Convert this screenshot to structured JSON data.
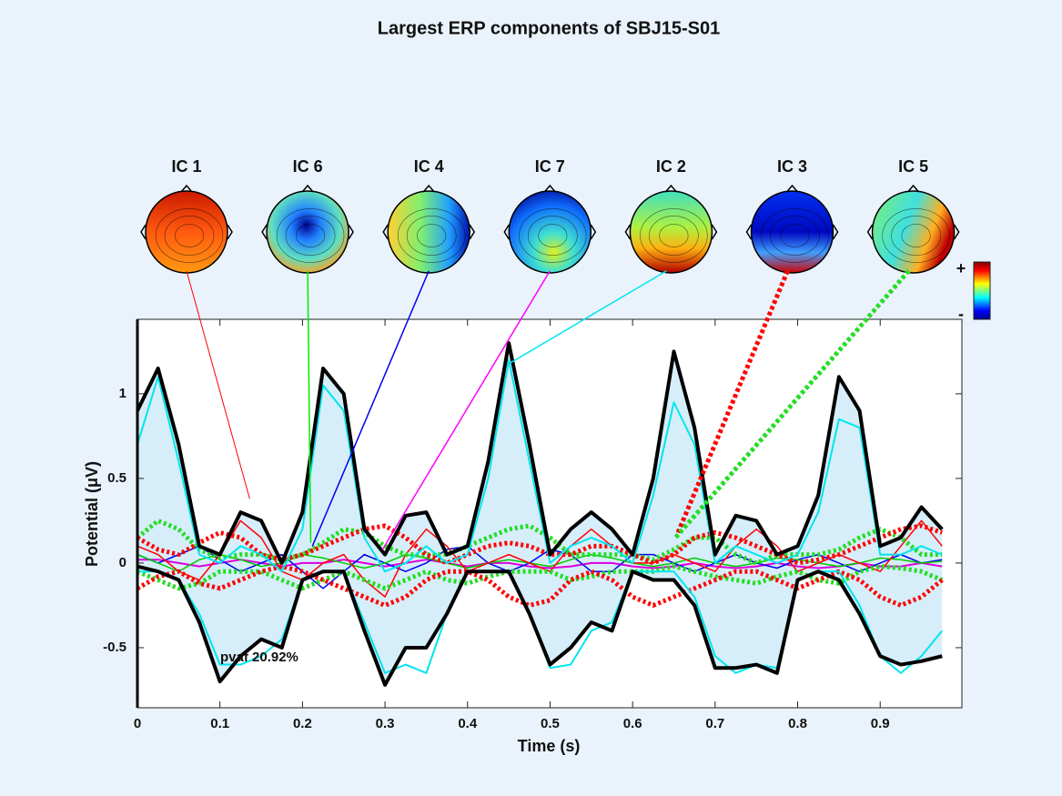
{
  "chart_data": {
    "type": "line",
    "title": "Largest ERP components of SBJ15-S01",
    "xlabel": "Time (s)",
    "ylabel": "Potential (μV)",
    "annotation": "pvaf 20.92%",
    "colorbar": {
      "plus": "+",
      "minus": "-"
    },
    "xlim": [
      0,
      0.999
    ],
    "ylim": [
      -0.855,
      1.44
    ],
    "xticks": [
      0,
      0.1,
      0.2,
      0.3,
      0.4,
      0.5,
      0.6,
      0.7,
      0.8,
      0.9
    ],
    "yticks": [
      -0.5,
      0,
      0.5,
      1
    ],
    "area_color": "#d6eef9",
    "x": [
      0,
      0.025,
      0.05,
      0.075,
      0.1,
      0.125,
      0.15,
      0.175,
      0.2,
      0.225,
      0.25,
      0.275,
      0.3,
      0.325,
      0.35,
      0.375,
      0.4,
      0.425,
      0.45,
      0.475,
      0.5,
      0.525,
      0.55,
      0.575,
      0.6,
      0.625,
      0.65,
      0.675,
      0.7,
      0.725,
      0.75,
      0.775,
      0.8,
      0.825,
      0.85,
      0.875,
      0.9,
      0.925,
      0.95,
      0.975
    ],
    "series": [
      {
        "color": "#000000",
        "linewidth": 4,
        "style": "solid",
        "values": [
          0.9,
          1.15,
          0.7,
          0.1,
          0.05,
          0.3,
          0.25,
          0.0,
          0.3,
          1.15,
          1.0,
          0.2,
          0.05,
          0.28,
          0.3,
          0.05,
          0.1,
          0.6,
          1.3,
          0.7,
          0.05,
          0.2,
          0.3,
          0.2,
          0.05,
          0.5,
          1.25,
          0.8,
          0.05,
          0.28,
          0.25,
          0.05,
          0.1,
          0.4,
          1.1,
          0.9,
          0.1,
          0.15,
          0.33,
          0.2
        ]
      },
      {
        "color": "#000000",
        "linewidth": 4,
        "style": "solid",
        "values": [
          -0.02,
          -0.05,
          -0.1,
          -0.35,
          -0.7,
          -0.55,
          -0.45,
          -0.5,
          -0.1,
          -0.05,
          -0.05,
          -0.4,
          -0.72,
          -0.5,
          -0.5,
          -0.3,
          -0.05,
          -0.05,
          -0.05,
          -0.3,
          -0.6,
          -0.5,
          -0.35,
          -0.4,
          -0.05,
          -0.1,
          -0.1,
          -0.25,
          -0.62,
          -0.62,
          -0.6,
          -0.65,
          -0.1,
          -0.05,
          -0.1,
          -0.3,
          -0.55,
          -0.6,
          -0.58,
          -0.55
        ]
      },
      {
        "color": "#00e5ee",
        "linewidth": 2,
        "style": "solid",
        "values": [
          0.7,
          1.1,
          0.6,
          0.05,
          0.0,
          0.1,
          0.05,
          -0.05,
          0.2,
          1.05,
          0.9,
          0.15,
          -0.05,
          0.0,
          0.1,
          0.0,
          0.05,
          0.5,
          1.2,
          0.6,
          0.0,
          0.1,
          0.15,
          0.1,
          0.0,
          0.4,
          0.95,
          0.7,
          0.0,
          0.1,
          0.05,
          0.0,
          0.05,
          0.3,
          0.85,
          0.8,
          0.05,
          0.05,
          0.1,
          0.05
        ]
      },
      {
        "color": "#00e5ee",
        "linewidth": 2,
        "style": "solid",
        "values": [
          -0.05,
          -0.05,
          -0.1,
          -0.3,
          -0.6,
          -0.6,
          -0.55,
          -0.45,
          -0.1,
          -0.05,
          -0.05,
          -0.35,
          -0.65,
          -0.6,
          -0.65,
          -0.3,
          -0.05,
          -0.05,
          -0.05,
          -0.3,
          -0.62,
          -0.6,
          -0.4,
          -0.35,
          -0.05,
          -0.05,
          -0.05,
          -0.2,
          -0.55,
          -0.65,
          -0.6,
          -0.62,
          -0.1,
          -0.05,
          -0.05,
          -0.25,
          -0.55,
          -0.65,
          -0.55,
          -0.4
        ]
      },
      {
        "color": "#ff0000",
        "linewidth": 5,
        "style": "dotted",
        "values": [
          0.15,
          0.08,
          0.05,
          0.12,
          0.18,
          0.15,
          0.05,
          0.02,
          0.05,
          0.1,
          0.15,
          0.2,
          0.22,
          0.15,
          0.05,
          0.0,
          0.05,
          0.1,
          0.12,
          0.1,
          0.05,
          0.05,
          0.1,
          0.1,
          0.05,
          0.0,
          0.05,
          0.15,
          0.18,
          0.15,
          0.1,
          0.05,
          0.0,
          0.02,
          0.05,
          0.1,
          0.15,
          0.2,
          0.22,
          0.18
        ]
      },
      {
        "color": "#ff0000",
        "linewidth": 5,
        "style": "dotted",
        "values": [
          -0.15,
          -0.08,
          -0.05,
          -0.12,
          -0.15,
          -0.1,
          -0.05,
          -0.02,
          -0.05,
          -0.1,
          -0.15,
          -0.2,
          -0.25,
          -0.2,
          -0.1,
          -0.05,
          -0.05,
          -0.1,
          -0.2,
          -0.25,
          -0.22,
          -0.1,
          -0.05,
          -0.1,
          -0.2,
          -0.25,
          -0.2,
          -0.15,
          -0.1,
          -0.05,
          -0.05,
          -0.1,
          -0.15,
          -0.1,
          -0.05,
          -0.1,
          -0.2,
          -0.25,
          -0.2,
          -0.1
        ]
      },
      {
        "color": "#22dd22",
        "linewidth": 5,
        "style": "dotted",
        "values": [
          0.15,
          0.25,
          0.2,
          0.08,
          0.03,
          0.05,
          0.05,
          0.02,
          0.05,
          0.12,
          0.2,
          0.18,
          0.1,
          0.05,
          0.05,
          0.05,
          0.1,
          0.15,
          0.2,
          0.22,
          0.15,
          0.05,
          0.05,
          0.05,
          0.05,
          0.02,
          0.08,
          0.15,
          0.15,
          0.05,
          0.0,
          0.05,
          0.05,
          0.05,
          0.08,
          0.15,
          0.2,
          0.15,
          0.05,
          0.05
        ]
      },
      {
        "color": "#22dd22",
        "linewidth": 5,
        "style": "dotted",
        "values": [
          -0.05,
          -0.1,
          -0.15,
          -0.12,
          -0.05,
          -0.05,
          -0.05,
          -0.1,
          -0.15,
          -0.1,
          -0.05,
          -0.1,
          -0.15,
          -0.1,
          -0.05,
          -0.1,
          -0.12,
          -0.08,
          -0.05,
          -0.05,
          -0.05,
          -0.1,
          -0.08,
          -0.05,
          -0.05,
          -0.05,
          -0.02,
          -0.05,
          -0.08,
          -0.1,
          -0.12,
          -0.08,
          -0.05,
          -0.1,
          -0.12,
          -0.05,
          -0.02,
          -0.03,
          -0.05,
          -0.1
        ]
      },
      {
        "color": "#ff0000",
        "linewidth": 1.5,
        "style": "solid",
        "values": [
          0.1,
          0.05,
          -0.05,
          -0.1,
          0.05,
          0.25,
          0.15,
          -0.05,
          -0.1,
          0.0,
          0.05,
          -0.1,
          -0.2,
          0.05,
          0.2,
          0.1,
          -0.05,
          0.0,
          0.05,
          0.0,
          -0.05,
          0.1,
          0.2,
          0.1,
          0.0,
          0.0,
          0.05,
          0.0,
          -0.05,
          0.1,
          0.2,
          0.1,
          -0.05,
          0.0,
          0.05,
          0.0,
          -0.05,
          0.1,
          0.25,
          0.1
        ]
      },
      {
        "color": "#00cc00",
        "linewidth": 1.5,
        "style": "solid",
        "values": [
          0.05,
          0.0,
          -0.05,
          0.02,
          0.05,
          0.02,
          -0.02,
          0.0,
          0.05,
          0.03,
          0.0,
          -0.03,
          0.0,
          0.05,
          0.03,
          0.0,
          -0.03,
          0.0,
          0.02,
          0.0,
          -0.02,
          0.02,
          0.05,
          0.03,
          0.0,
          -0.02,
          0.0,
          0.03,
          0.0,
          -0.02,
          0.0,
          0.03,
          0.02,
          0.0,
          -0.02,
          0.0,
          0.03,
          0.02,
          0.0,
          0.01
        ]
      },
      {
        "color": "#0000ee",
        "linewidth": 1.5,
        "style": "solid",
        "values": [
          0.05,
          0.0,
          0.05,
          0.1,
          0.02,
          -0.05,
          0.0,
          0.05,
          -0.05,
          -0.15,
          -0.05,
          0.05,
          0.0,
          -0.05,
          0.0,
          0.08,
          0.1,
          0.0,
          -0.05,
          0.0,
          0.08,
          0.05,
          -0.05,
          -0.05,
          0.05,
          0.05,
          0.0,
          -0.05,
          0.0,
          0.05,
          0.0,
          -0.03,
          0.02,
          0.05,
          0.0,
          -0.05,
          0.0,
          0.05,
          0.0,
          0.02
        ]
      },
      {
        "color": "#dd00dd",
        "linewidth": 2,
        "style": "solid",
        "values": [
          0.02,
          0.02,
          0.0,
          -0.02,
          0.0,
          0.02,
          0.0,
          -0.02,
          0.0,
          0.0,
          0.02,
          0.0,
          -0.02,
          0.0,
          0.02,
          0.0,
          -0.02,
          0.0,
          0.0,
          -0.02,
          -0.03,
          -0.02,
          0.0,
          0.0,
          -0.02,
          -0.03,
          -0.02,
          0.0,
          -0.02,
          -0.03,
          -0.02,
          0.0,
          -0.02,
          -0.03,
          -0.02,
          0.0,
          -0.02,
          -0.02,
          0.0,
          -0.02
        ]
      }
    ],
    "topomaps": [
      {
        "label": "IC 1",
        "color": "#ff0000",
        "style": "solid",
        "linewidth": 1,
        "latency": 0.136,
        "value": 0.38
      },
      {
        "label": "IC 6",
        "color": "#00ee00",
        "style": "solid",
        "linewidth": 1.5,
        "latency": 0.21,
        "value": 0.12
      },
      {
        "label": "IC 4",
        "color": "#0000ee",
        "style": "solid",
        "linewidth": 1.5,
        "latency": 0.212,
        "value": 0.1
      },
      {
        "label": "IC 7",
        "color": "#ff00ff",
        "style": "solid",
        "linewidth": 1.5,
        "latency": 0.297,
        "value": 0.08
      },
      {
        "label": "IC 2",
        "color": "#00e5ee",
        "style": "solid",
        "linewidth": 1.5,
        "latency": 0.451,
        "value": 1.18
      },
      {
        "label": "IC 3",
        "color": "#ff0000",
        "style": "dotted",
        "linewidth": 5,
        "latency": 0.655,
        "value": 0.18
      },
      {
        "label": "IC 5",
        "color": "#22dd22",
        "style": "dotted",
        "linewidth": 5,
        "latency": 0.652,
        "value": 0.15
      }
    ]
  }
}
